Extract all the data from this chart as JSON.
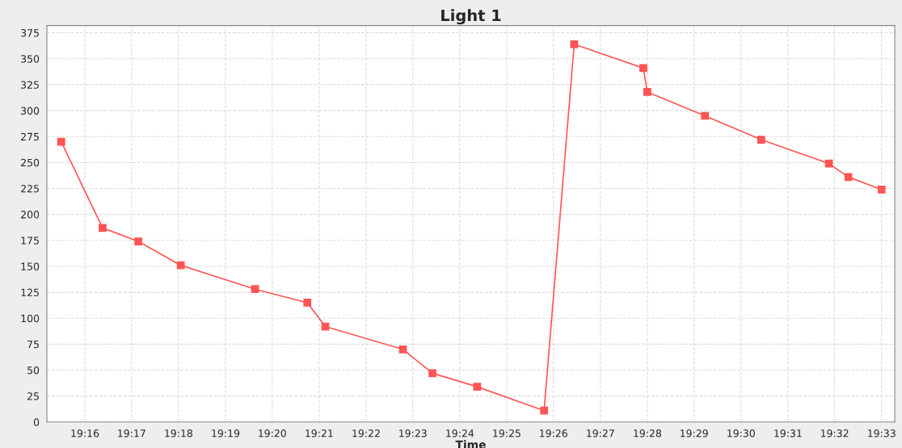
{
  "chart_data": {
    "type": "line",
    "title": "Light 1",
    "xlabel": "Time",
    "x": [
      19.2583,
      19.273,
      19.2857,
      19.3008,
      19.3272,
      19.3458,
      19.3522,
      19.3798,
      19.3903,
      19.4062,
      19.43,
      19.4407,
      19.4653,
      19.4667,
      19.4872,
      19.5072,
      19.5313,
      19.5382,
      19.55
    ],
    "series": [
      {
        "color": "#ff5555",
        "values": [
          270,
          187,
          174,
          151,
          128,
          115,
          92,
          70,
          47,
          34,
          11,
          364,
          341,
          318,
          295,
          272,
          249,
          236,
          224
        ]
      }
    ],
    "xlim": [
      19.2532,
      19.5547
    ],
    "xticks": [
      {
        "value": 19.2667,
        "label": "19:16"
      },
      {
        "value": 19.2833,
        "label": "19:17"
      },
      {
        "value": 19.3,
        "label": "19:18"
      },
      {
        "value": 19.3167,
        "label": "19:19"
      },
      {
        "value": 19.3333,
        "label": "19:20"
      },
      {
        "value": 19.35,
        "label": "19:21"
      },
      {
        "value": 19.3667,
        "label": "19:22"
      },
      {
        "value": 19.3833,
        "label": "19:23"
      },
      {
        "value": 19.4,
        "label": "19:24"
      },
      {
        "value": 19.4167,
        "label": "19:25"
      },
      {
        "value": 19.4333,
        "label": "19:26"
      },
      {
        "value": 19.45,
        "label": "19:27"
      },
      {
        "value": 19.4667,
        "label": "19:28"
      },
      {
        "value": 19.4833,
        "label": "19:29"
      },
      {
        "value": 19.5,
        "label": "19:30"
      },
      {
        "value": 19.5167,
        "label": "19:31"
      },
      {
        "value": 19.5333,
        "label": "19:32"
      },
      {
        "value": 19.55,
        "label": "19:33"
      }
    ],
    "ylim": [
      0,
      382
    ],
    "yticks": [
      0,
      25,
      50,
      75,
      100,
      125,
      150,
      175,
      200,
      225,
      250,
      275,
      300,
      325,
      350,
      375
    ],
    "grid": true,
    "marker": "square",
    "line_style": "solid"
  }
}
